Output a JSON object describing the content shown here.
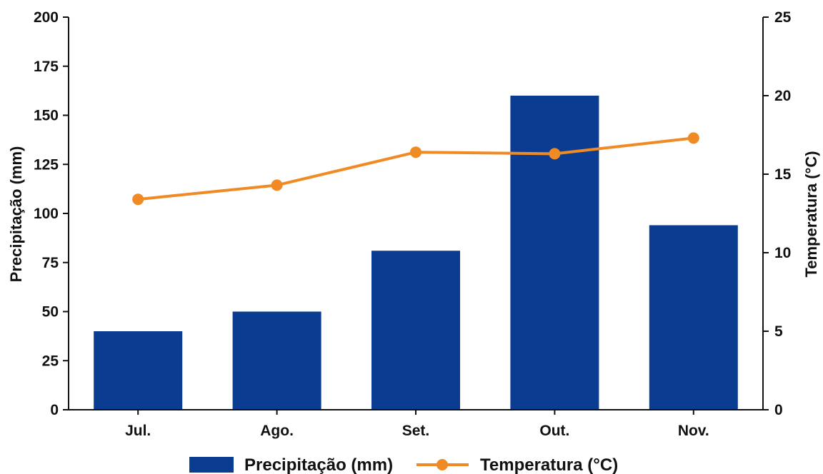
{
  "chart_data": {
    "type": "bar",
    "categories": [
      "Jul.",
      "Ago.",
      "Set.",
      "Out.",
      "Nov."
    ],
    "series": [
      {
        "name": "Precipitação (mm)",
        "type": "bar",
        "axis": "left",
        "color": "#0a3d91",
        "values": [
          40,
          50,
          81,
          160,
          94
        ]
      },
      {
        "name": "Temperatura (°C)",
        "type": "line",
        "axis": "right",
        "color": "#f08a24",
        "values": [
          13.4,
          14.3,
          16.4,
          16.3,
          17.3
        ]
      }
    ],
    "title": "",
    "xlabel": "",
    "ylabel": "Precipitação (mm)",
    "y2label": "Temperatura (°C)",
    "ylim": [
      0,
      200
    ],
    "y2lim": [
      0,
      25
    ],
    "yticks": [
      0,
      25,
      50,
      75,
      100,
      125,
      150,
      175,
      200
    ],
    "y2ticks": [
      0,
      5,
      10,
      15,
      20,
      25
    ],
    "grid": false,
    "legend_position": "bottom"
  }
}
